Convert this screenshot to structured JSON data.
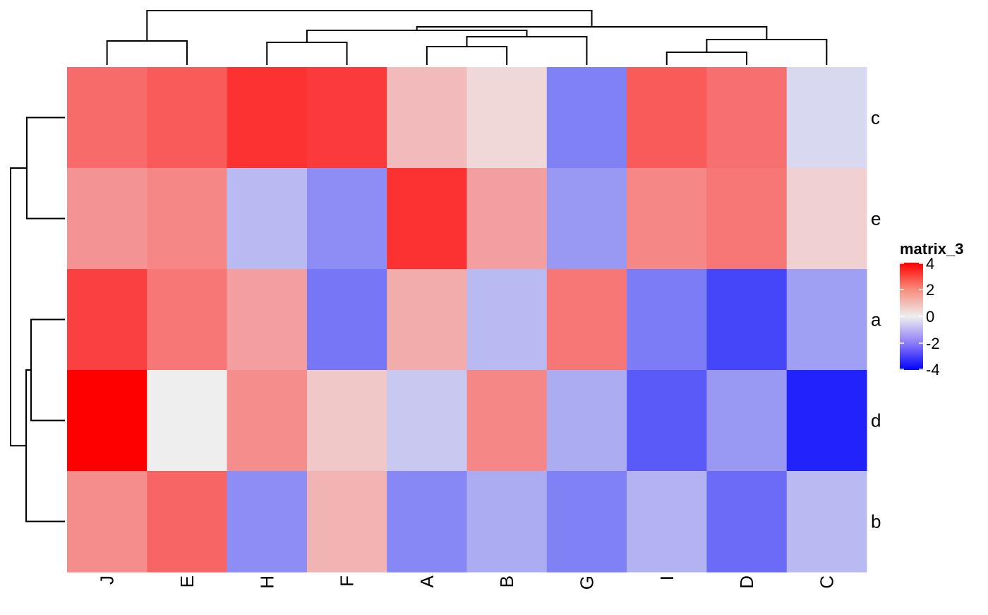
{
  "chart_data": {
    "type": "heatmap",
    "columns": [
      "J",
      "E",
      "H",
      "F",
      "A",
      "B",
      "G",
      "I",
      "D",
      "C"
    ],
    "rows": [
      "c",
      "e",
      "a",
      "d",
      "b"
    ],
    "values": [
      [
        1.9,
        2.2,
        3.0,
        2.8,
        0.6,
        0.2,
        -1.5,
        2.2,
        1.8,
        -0.2
      ],
      [
        1.2,
        1.4,
        -0.6,
        -1.3,
        3.0,
        1.0,
        -1.1,
        1.4,
        1.7,
        0.3
      ],
      [
        2.7,
        1.7,
        1.0,
        -1.7,
        0.8,
        -0.6,
        1.7,
        -1.6,
        -2.6,
        -1.0
      ],
      [
        4.0,
        0.0,
        1.3,
        0.4,
        -0.4,
        1.4,
        -0.8,
        -2.2,
        -1.1,
        -3.3
      ],
      [
        1.3,
        2.0,
        -1.3,
        0.7,
        -1.4,
        -0.8,
        -1.5,
        -0.7,
        -1.9,
        -0.6
      ]
    ],
    "legend": {
      "title": "matrix_3",
      "ticks": [
        4,
        2,
        0,
        -2,
        -4
      ],
      "range": [
        -4,
        4
      ],
      "colors": {
        "low": "#0000FF",
        "mid": "#EEEEEE",
        "high": "#FF0000"
      },
      "placement": "right"
    },
    "column_dendrogram": true,
    "row_dendrogram": true
  }
}
